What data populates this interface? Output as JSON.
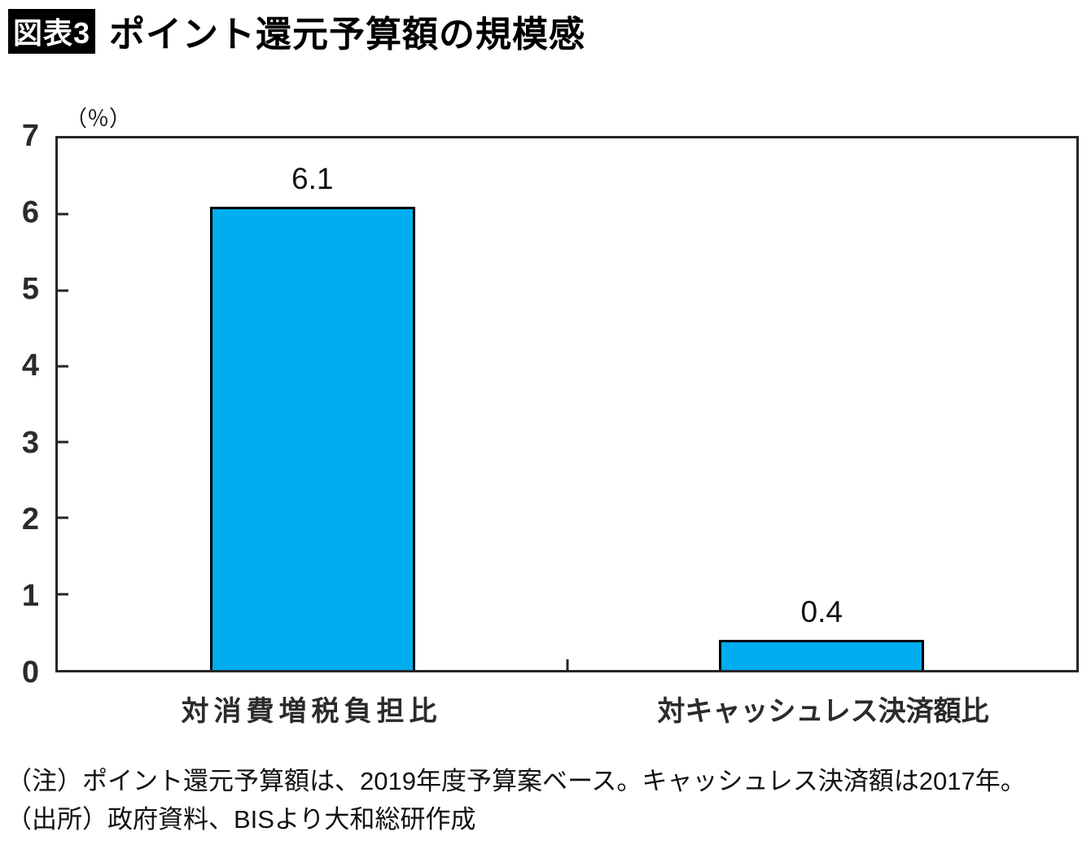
{
  "title": {
    "badge": "図表3",
    "text": "ポイント還元予算額の規模感"
  },
  "chart_data": {
    "type": "bar",
    "title": "ポイント還元予算額の規模感",
    "unit_label": "（％）",
    "categories": [
      "対消費増税負担比",
      "対キャッシュレス決済額比"
    ],
    "values": [
      6.1,
      0.4
    ],
    "data_labels": [
      "6.1",
      "0.4"
    ],
    "ylim": [
      0,
      7
    ],
    "yticks": [
      0,
      1,
      2,
      3,
      4,
      5,
      6,
      7
    ],
    "grid": false,
    "legend": "none",
    "bar_color": "#00AEEF",
    "bar_border_color": "#000000",
    "axis_color": "#262626"
  },
  "notes": {
    "note": "（注）ポイント還元予算額は、2019年度予算案ベース。キャッシュレス決済額は2017年。",
    "source": "（出所）政府資料、BISより大和総研作成"
  }
}
